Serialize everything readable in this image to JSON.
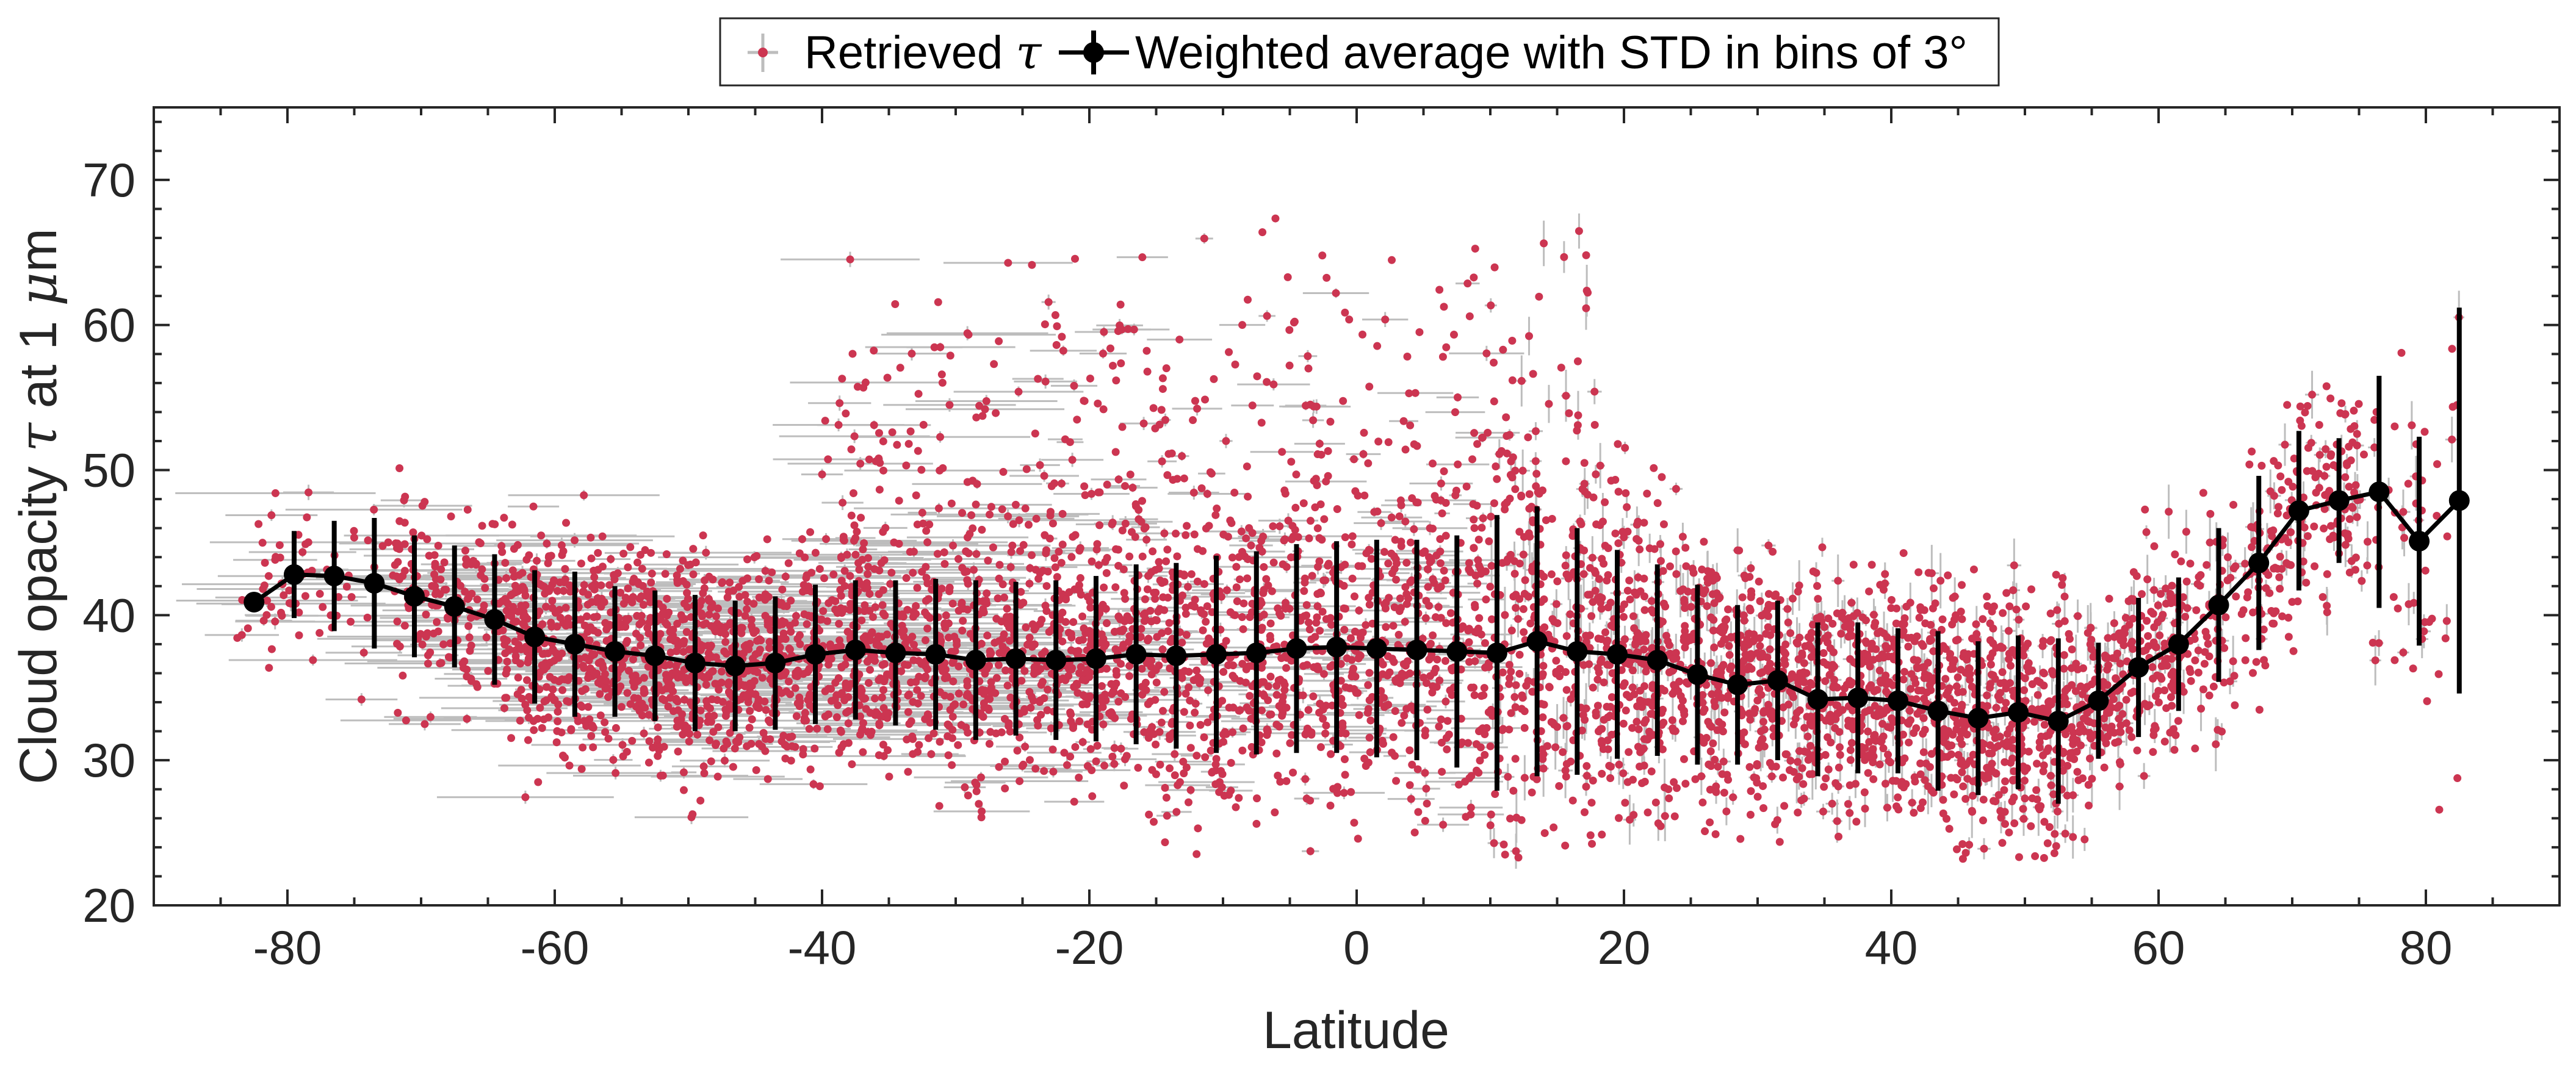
{
  "chart_data": {
    "type": "scatter",
    "title": "",
    "xlabel": "Latitude",
    "ylabel": {
      "prefix": "Cloud opacity ",
      "symbol": "τ",
      "middle": " at 1 ",
      "unit_symbol": "μ",
      "suffix": "m"
    },
    "xlim": [
      -90,
      90
    ],
    "ylim": [
      20,
      75
    ],
    "x_ticks": [
      -80,
      -60,
      -40,
      -20,
      0,
      20,
      40,
      60,
      80
    ],
    "y_ticks": [
      20,
      30,
      40,
      50,
      60,
      70
    ],
    "x_tick_labels": [
      "-80",
      "-60",
      "-40",
      "-20",
      "0",
      "20",
      "40",
      "60",
      "80"
    ],
    "y_tick_labels": [
      "20",
      "30",
      "40",
      "50",
      "60",
      "70"
    ],
    "grid": false,
    "legend_position": "top-center",
    "legend": {
      "scatter": {
        "text": "Retrieved ",
        "symbol": "τ"
      },
      "average": {
        "text": "Weighted average with STD in bins of 3°"
      }
    },
    "colors": {
      "scatter": "#cc3551",
      "error_bar": "#bdbdbd",
      "average": "#000000",
      "axis": "#262626"
    },
    "series": [
      {
        "kind": "errorbar-line",
        "x": [
          -82.5,
          -79.5,
          -76.5,
          -73.5,
          -70.5,
          -67.5,
          -64.5,
          -61.5,
          -58.5,
          -55.5,
          -52.5,
          -49.5,
          -46.5,
          -43.5,
          -40.5,
          -37.5,
          -34.5,
          -31.5,
          -28.5,
          -25.5,
          -22.5,
          -19.5,
          -16.5,
          -13.5,
          -10.5,
          -7.5,
          -4.5,
          -1.5,
          1.5,
          4.5,
          7.5,
          10.5,
          13.5,
          16.5,
          19.5,
          22.5,
          25.5,
          28.5,
          31.5,
          34.5,
          37.5,
          40.5,
          43.5,
          46.5,
          49.5,
          52.5,
          55.5,
          58.5,
          61.5,
          64.5,
          67.5,
          70.5,
          73.5,
          76.5,
          79.5,
          82.5
        ],
        "y": [
          40.9,
          42.8,
          42.7,
          42.2,
          41.3,
          40.6,
          39.7,
          38.5,
          38.0,
          37.5,
          37.2,
          36.7,
          36.5,
          36.7,
          37.3,
          37.6,
          37.4,
          37.3,
          36.9,
          37.0,
          36.9,
          37.0,
          37.3,
          37.2,
          37.3,
          37.4,
          37.7,
          37.8,
          37.7,
          37.6,
          37.5,
          37.4,
          38.2,
          37.5,
          37.3,
          36.9,
          35.9,
          35.2,
          35.5,
          34.2,
          34.3,
          34.1,
          33.4,
          32.9,
          33.3,
          32.7,
          34.1,
          36.4,
          38.0,
          40.7,
          43.6,
          47.2,
          47.9,
          48.5,
          45.1,
          47.9
        ],
        "y_err": [
          0,
          3,
          3.8,
          4.5,
          4.2,
          4.2,
          4.5,
          4.6,
          5.0,
          4.5,
          4.5,
          4.7,
          4.5,
          4.6,
          4.8,
          4.8,
          5.0,
          5.2,
          5.5,
          5.3,
          5.5,
          5.7,
          6.2,
          6.4,
          6.8,
          7.0,
          7.2,
          7.3,
          7.5,
          7.6,
          8.0,
          9.5,
          9.3,
          8.5,
          7.2,
          6.6,
          6.2,
          5.5,
          5.5,
          5.3,
          5.2,
          5.0,
          5.5,
          5.3,
          5.3,
          5.7,
          4.0,
          4.8,
          4.6,
          5.3,
          6.0,
          5.5,
          4.3,
          8.0,
          7.2,
          13.3
        ]
      }
    ]
  }
}
